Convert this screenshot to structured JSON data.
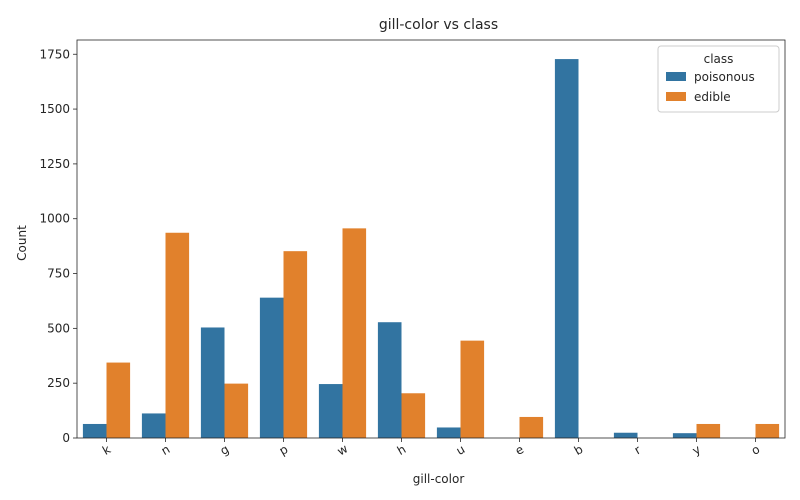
{
  "chart_data": {
    "type": "bar",
    "title": "gill-color vs class",
    "xlabel": "gill-color",
    "ylabel": "Count",
    "categories": [
      "k",
      "n",
      "g",
      "p",
      "w",
      "h",
      "u",
      "e",
      "b",
      "r",
      "y",
      "o"
    ],
    "series": [
      {
        "name": "poisonous",
        "color": "#3274a1",
        "values": [
          64,
          112,
          504,
          640,
          246,
          528,
          48,
          0,
          1728,
          24,
          22,
          0
        ]
      },
      {
        "name": "edible",
        "color": "#e1812c",
        "values": [
          344,
          936,
          248,
          852,
          956,
          204,
          444,
          96,
          0,
          0,
          64,
          64
        ]
      }
    ],
    "ylim": [
      0,
      1815
    ],
    "yticks": [
      0,
      250,
      500,
      750,
      1000,
      1250,
      1500,
      1750
    ],
    "legend": {
      "title": "class",
      "placement": "top-right"
    },
    "grid": false
  }
}
